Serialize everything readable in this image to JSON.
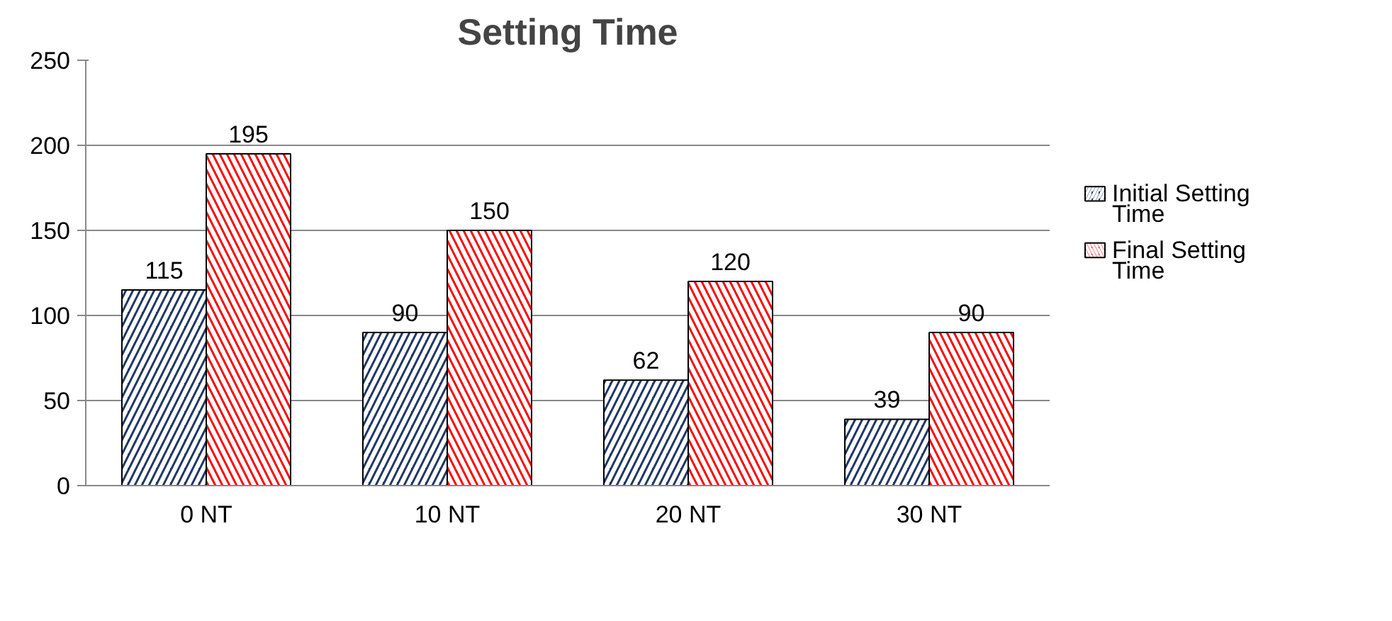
{
  "chart_data": {
    "type": "bar",
    "title": "Setting Time",
    "categories": [
      "0 NT",
      "10 NT",
      "20 NT",
      "30 NT"
    ],
    "series": [
      {
        "name": "Initial Setting Time",
        "color": "#1f3864",
        "values": [
          115,
          90,
          62,
          39
        ]
      },
      {
        "name": "Final Setting Time",
        "color": "#ff0000",
        "values": [
          195,
          150,
          120,
          90
        ]
      }
    ],
    "ylim": [
      0,
      250
    ],
    "yticks": [
      0,
      50,
      100,
      150,
      200,
      250
    ],
    "grid": "y",
    "legend": "right",
    "data_labels": true
  }
}
